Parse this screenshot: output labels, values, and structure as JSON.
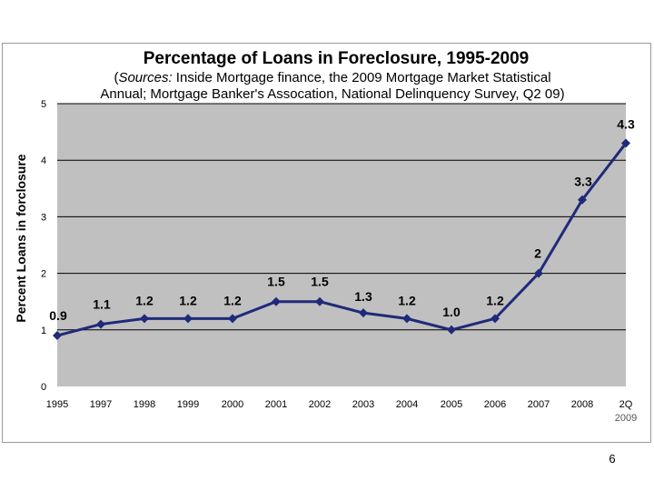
{
  "page_number": "6",
  "chart_data": {
    "type": "line",
    "title": "Percentage of Loans in Foreclosure, 1995-2009",
    "subtitle_lead": "(",
    "subtitle_source_word": "Sources:",
    "subtitle_line1_rest": " Inside Mortgage finance, the 2009 Mortgage Market Statistical",
    "subtitle_line2": "Annual; Mortgage Banker's Assocation, National Delinquency Survey, Q2 09)",
    "ylabel": "Percent Loans in forclosure",
    "xlabel": "",
    "ylim": [
      0,
      5
    ],
    "yticks": [
      "0",
      "1",
      "2",
      "3",
      "4",
      "5"
    ],
    "grid": true,
    "legend": "none",
    "categories": [
      "1995",
      "1997",
      "1998",
      "1999",
      "2000",
      "2001",
      "2002",
      "2003",
      "2004",
      "2005",
      "2006",
      "2007",
      "2008",
      "2Q"
    ],
    "category_sublabels": [
      "",
      "",
      "",
      "",
      "",
      "",
      "",
      "",
      "",
      "",
      "",
      "",
      "",
      "2009"
    ],
    "values": [
      0.9,
      1.1,
      1.2,
      1.2,
      1.2,
      1.5,
      1.5,
      1.3,
      1.2,
      1.0,
      1.2,
      2.0,
      3.3,
      4.3
    ],
    "data_labels": [
      "0.9",
      "1.1",
      "1.2",
      "1.2",
      "1.2",
      "1.5",
      "1.5",
      "1.3",
      "1.2",
      "1.0",
      "1.2",
      "2",
      "3.3",
      "4.3"
    ],
    "colors": {
      "plot_background": "#c0c0c0",
      "gridline": "#000000",
      "line": "#1f2a7a",
      "marker": "#1f2a7a"
    }
  }
}
